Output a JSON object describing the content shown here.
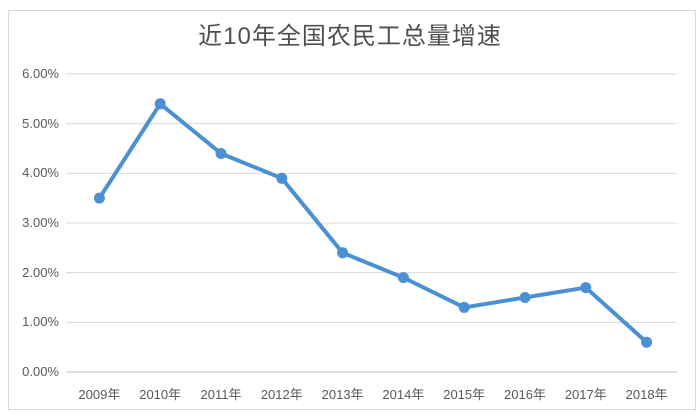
{
  "page": {
    "background": "#ffffff",
    "border_color": "#d7d7d7"
  },
  "chart_data": {
    "type": "line",
    "title": "近10年全国农民工总量增速",
    "categories": [
      "2009年",
      "2010年",
      "2011年",
      "2012年",
      "2013年",
      "2014年",
      "2015年",
      "2016年",
      "2017年",
      "2018年"
    ],
    "values": [
      3.5,
      5.4,
      4.4,
      3.9,
      2.4,
      1.9,
      1.3,
      1.5,
      1.7,
      0.6
    ],
    "value_unit": "%",
    "xlabel": "",
    "ylabel": "",
    "ylim": [
      0,
      6
    ],
    "y_ticks": [
      0,
      1,
      2,
      3,
      4,
      5,
      6
    ],
    "y_tick_labels": [
      "0.00%",
      "1.00%",
      "2.00%",
      "3.00%",
      "4.00%",
      "5.00%",
      "6.00%"
    ],
    "grid": true,
    "legend": "none",
    "marker": "circle"
  },
  "colors": {
    "line": "#4A90D2",
    "marker_fill": "#4A90D2",
    "gridline": "#D9D9D9",
    "axis_line": "#BFBFBF",
    "title_text": "#4F4F4F",
    "tick_text": "#595959"
  }
}
